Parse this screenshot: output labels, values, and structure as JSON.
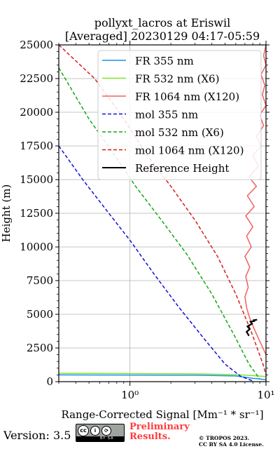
{
  "chart_data": {
    "type": "line",
    "title_line1": "pollyxt_lacros at Eriswil",
    "title_line2": "[Averaged] 20230129 04:17-05:59",
    "xlabel": "Range-Corrected Signal [Mm⁻¹ * sr⁻¹]",
    "ylabel": "Height (m)",
    "xscale": "log",
    "xlim": [
      0.3,
      10
    ],
    "ylim": [
      0,
      25000
    ],
    "yticks": [
      0,
      2500,
      5000,
      7500,
      10000,
      12500,
      15000,
      17500,
      20000,
      22500,
      25000
    ],
    "ytick_labels": [
      "0",
      "2500",
      "5000",
      "7500",
      "10000",
      "12500",
      "15000",
      "17500",
      "20000",
      "22500",
      "25000"
    ],
    "xticks": [
      1,
      10
    ],
    "xtick_labels": [
      "10⁰",
      "10¹"
    ],
    "grid": true,
    "legend_position": "top-right",
    "series": [
      {
        "name": "FR 355 nm",
        "color": "#1f8fe6",
        "style": "solid",
        "x": [
          0.3,
          3,
          6,
          8,
          10,
          10,
          10
        ],
        "y": [
          500,
          480,
          420,
          250,
          150,
          100,
          50
        ]
      },
      {
        "name": "FR 532 nm (X6)",
        "color": "#7fe52a",
        "style": "solid",
        "x": [
          0.3,
          3,
          6,
          8,
          10,
          10
        ],
        "y": [
          620,
          580,
          520,
          450,
          380,
          300
        ]
      },
      {
        "name": "FR 1064 nm (X120)",
        "color": "#f26060",
        "style": "solid",
        "x": [
          10,
          9.6,
          10,
          9.2,
          9.8,
          9.4,
          10,
          9.0,
          9.6,
          8.5,
          9.2,
          8.0,
          8.8,
          7.5,
          8.5,
          7.3,
          8.2,
          7.1,
          8.0,
          7.2,
          7.8,
          7.0,
          7.6,
          7.1,
          7.4,
          7.0,
          7.2,
          7.6,
          8.2,
          9.0,
          10
        ],
        "y": [
          25000,
          24200,
          23500,
          22800,
          22000,
          21300,
          20500,
          19800,
          19000,
          18200,
          17500,
          16800,
          16000,
          15200,
          14500,
          13800,
          13000,
          12300,
          11500,
          10800,
          10000,
          9300,
          8500,
          7800,
          7000,
          6300,
          5500,
          4700,
          3900,
          3000,
          2000
        ]
      },
      {
        "name": "mol 355 nm",
        "color": "#1010d8",
        "style": "dashed",
        "x": [
          0.3,
          0.45,
          0.7,
          1.0,
          1.5,
          2.3,
          3.5,
          5.0,
          6.5,
          8.0
        ],
        "y": [
          17500,
          15000,
          12500,
          10500,
          8000,
          5500,
          3200,
          1300,
          400,
          50
        ]
      },
      {
        "name": "mol 532 nm (X6)",
        "color": "#12a812",
        "style": "dashed",
        "x": [
          0.3,
          0.5,
          0.75,
          1.1,
          1.7,
          2.6,
          4.0,
          5.8,
          7.5,
          9.0
        ],
        "y": [
          23300,
          19500,
          17000,
          14500,
          12000,
          9500,
          6500,
          3500,
          1300,
          200
        ]
      },
      {
        "name": "mol 1064 nm (X120)",
        "color": "#d81c1c",
        "style": "dashed",
        "x": [
          0.3,
          0.55,
          0.85,
          1.3,
          2.0,
          3.0,
          4.4,
          6.0,
          7.8,
          9.5,
          10
        ],
        "y": [
          25000,
          22500,
          19900,
          17000,
          14500,
          12000,
          9300,
          6500,
          3700,
          1300,
          500
        ]
      },
      {
        "name": "Reference Height",
        "color": "#000000",
        "style": "solid",
        "x": [
          7.5,
          7.2,
          7.6,
          7.3,
          7.9,
          7.7,
          8.3,
          8.0,
          8.6
        ],
        "y": [
          3400,
          3700,
          3900,
          4100,
          4300,
          4450,
          4500,
          4550,
          4600
        ]
      }
    ]
  },
  "footer": {
    "version": "Version: 3.5",
    "preliminary_line1": "Preliminary",
    "preliminary_line2": "Results.",
    "tropos_line1": "© TROPOS 2023.",
    "tropos_line2": "CC BY SA 4.0 License.",
    "cc_badge_text": "BY  SA"
  }
}
